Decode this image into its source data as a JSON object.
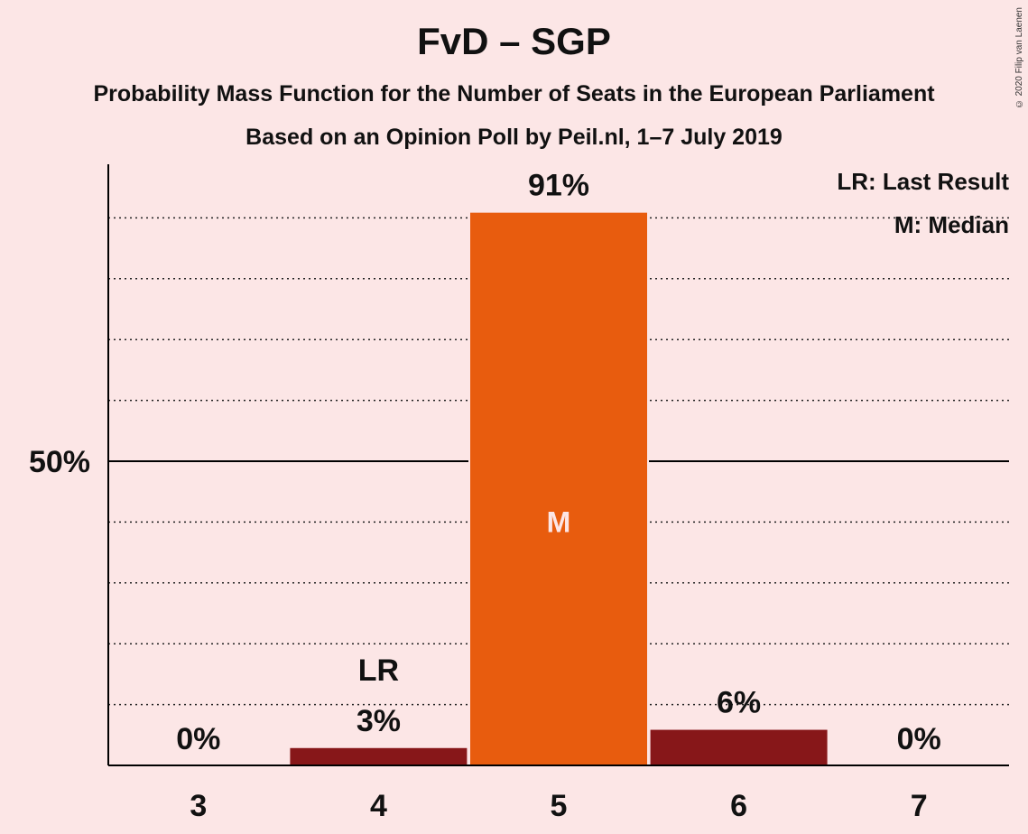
{
  "title": "FvD – SGP",
  "subtitle1": "Probability Mass Function for the Number of Seats in the European Parliament",
  "subtitle2": "Based on an Opinion Poll by Peil.nl, 1–7 July 2019",
  "copyright": "© 2020 Filip van Laenen",
  "legend": {
    "last_result": "LR: Last Result",
    "median": "M: Median"
  },
  "colors": {
    "background": "#fce6e6",
    "bar_dark": "#871719",
    "bar_median": "#e85c0e",
    "axis": "#000000"
  },
  "chart_data": {
    "type": "bar",
    "categories": [
      "3",
      "4",
      "5",
      "6",
      "7"
    ],
    "values": [
      0,
      3,
      91,
      6,
      0
    ],
    "value_labels": [
      "0%",
      "3%",
      "91%",
      "6%",
      "0%"
    ],
    "bar_colors": [
      "#871719",
      "#871719",
      "#e85c0e",
      "#871719",
      "#871719"
    ],
    "markers": [
      {
        "category": "4",
        "label": "LR"
      },
      {
        "category": "5",
        "label": "M"
      }
    ],
    "ylim": [
      0,
      100
    ],
    "yticks": [
      {
        "value": 50,
        "label": "50%"
      }
    ],
    "gridlines": [
      10,
      20,
      30,
      40,
      60,
      70,
      80,
      90
    ]
  }
}
